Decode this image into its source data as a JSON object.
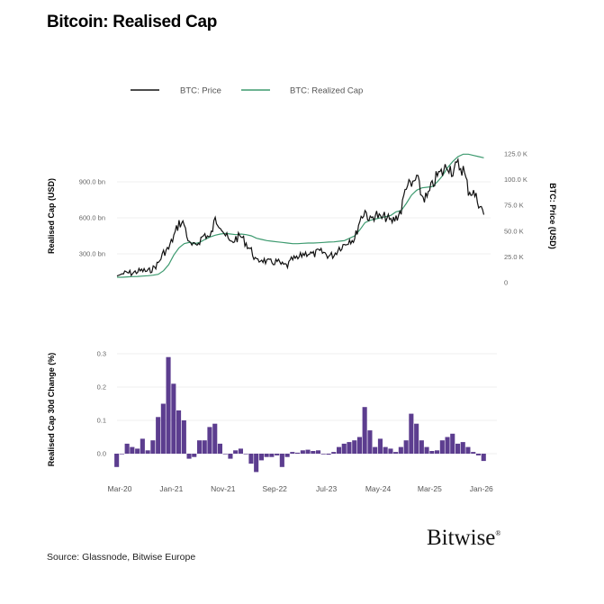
{
  "title": "Bitcoin: Realised Cap",
  "source": "Source: Glassnode, Bitwise Europe",
  "logo": "Bitwise",
  "colors": {
    "price": "#111111",
    "realized_cap": "#3d9a6f",
    "change_bars": "#5c3d8f"
  },
  "chart_data": [
    {
      "type": "line",
      "legend": [
        "BTC: Price",
        "BTC: Realized Cap"
      ],
      "legend_placement": "top",
      "left_axis": {
        "label": "Realised Cap (USD)",
        "ticks": [
          "300.0 bn",
          "600.0 bn",
          "900.0 bn"
        ],
        "tick_values": [
          300,
          600,
          900
        ]
      },
      "right_axis": {
        "label": "BTC: Price (USD)",
        "ticks": [
          "0",
          "25.0 K",
          "50.0 K",
          "75.0 K",
          "100.0 K",
          "125.0 K"
        ],
        "tick_values": [
          0,
          25,
          50,
          75,
          100,
          125
        ]
      },
      "x_start": "Mar-20",
      "x_end": "Feb-26",
      "x_frequency": "monthly",
      "series": [
        {
          "name": "BTC: Price",
          "unit": "K USD",
          "axis": "right",
          "values": [
            6.5,
            8.6,
            9.5,
            9.2,
            11,
            11.7,
            10.8,
            13.8,
            19,
            29,
            33,
            45,
            58,
            57,
            37,
            35,
            41,
            47,
            43,
            61,
            57,
            46,
            38,
            43,
            45,
            38,
            31,
            20,
            23,
            20,
            19.5,
            20.5,
            17,
            16.5,
            23,
            23,
            28,
            29,
            27,
            30,
            29,
            26,
            27,
            34,
            37,
            42,
            42,
            61,
            70,
            60,
            67,
            62,
            64,
            59,
            63,
            70,
            96,
            93,
            102,
            84,
            82,
            94,
            104,
            107,
            115,
            108,
            114,
            110,
            90,
            87,
            78,
            66
          ]
        },
        {
          "name": "BTC: Realized Cap",
          "unit": "bn USD",
          "axis": "left",
          "values": [
            105,
            105,
            108,
            110,
            112,
            115,
            118,
            122,
            130,
            160,
            210,
            290,
            350,
            385,
            395,
            385,
            395,
            420,
            440,
            455,
            465,
            470,
            465,
            460,
            465,
            460,
            450,
            430,
            420,
            410,
            405,
            400,
            395,
            390,
            385,
            385,
            388,
            390,
            390,
            392,
            395,
            398,
            400,
            405,
            410,
            430,
            450,
            500,
            560,
            580,
            590,
            600,
            610,
            620,
            650,
            660,
            720,
            790,
            830,
            850,
            855,
            860,
            900,
            950,
            1020,
            1070,
            1110,
            1130,
            1130,
            1120,
            1110,
            1100
          ]
        }
      ],
      "grid": true
    },
    {
      "type": "bar",
      "y_axis": {
        "label": "Realised Cap 30d Change (%)",
        "ticks": [
          "0.0",
          "0.1",
          "0.2",
          "0.3"
        ],
        "tick_values": [
          0,
          0.1,
          0.2,
          0.3
        ]
      },
      "x_ticks": [
        "Mar-20",
        "Jan-21",
        "Nov-21",
        "Sep-22",
        "Jul-23",
        "May-24",
        "Mar-25",
        "Jan-26"
      ],
      "x_start": "Mar-20",
      "x_frequency": "monthly",
      "values": [
        -0.04,
        0.0,
        0.03,
        0.02,
        0.015,
        0.045,
        0.01,
        0.04,
        0.11,
        0.15,
        0.29,
        0.21,
        0.13,
        0.1,
        -0.015,
        -0.01,
        0.04,
        0.04,
        0.08,
        0.09,
        0.03,
        0.0,
        -0.015,
        0.01,
        0.015,
        0.0,
        -0.03,
        -0.055,
        -0.02,
        -0.01,
        -0.01,
        -0.005,
        -0.04,
        -0.01,
        0.005,
        0.003,
        0.01,
        0.012,
        0.008,
        0.01,
        -0.002,
        -0.003,
        0.005,
        0.02,
        0.03,
        0.035,
        0.04,
        0.05,
        0.14,
        0.07,
        0.02,
        0.045,
        0.02,
        0.015,
        0.005,
        0.02,
        0.04,
        0.12,
        0.09,
        0.04,
        0.02,
        0.008,
        0.01,
        0.04,
        0.05,
        0.06,
        0.03,
        0.035,
        0.02,
        0.005,
        -0.005,
        -0.022
      ],
      "grid": true
    }
  ]
}
